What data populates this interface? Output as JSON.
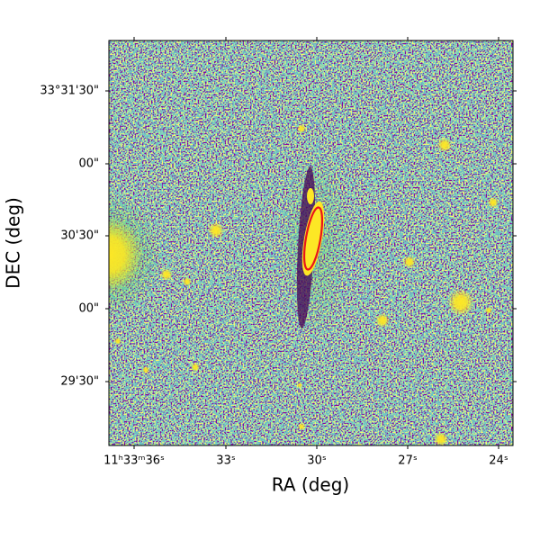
{
  "chart_data": {
    "type": "image",
    "xlabel": "RA (deg)",
    "ylabel": "DEC (deg)",
    "xticks": [
      "11ʰ33ᵐ36ˢ",
      "33ˢ",
      "30ˢ",
      "27ˢ",
      "24ˢ"
    ],
    "yticks": [
      "33°31'30\"",
      "00\"",
      "30'30\"",
      "00\"",
      "29'30\""
    ]
  }
}
